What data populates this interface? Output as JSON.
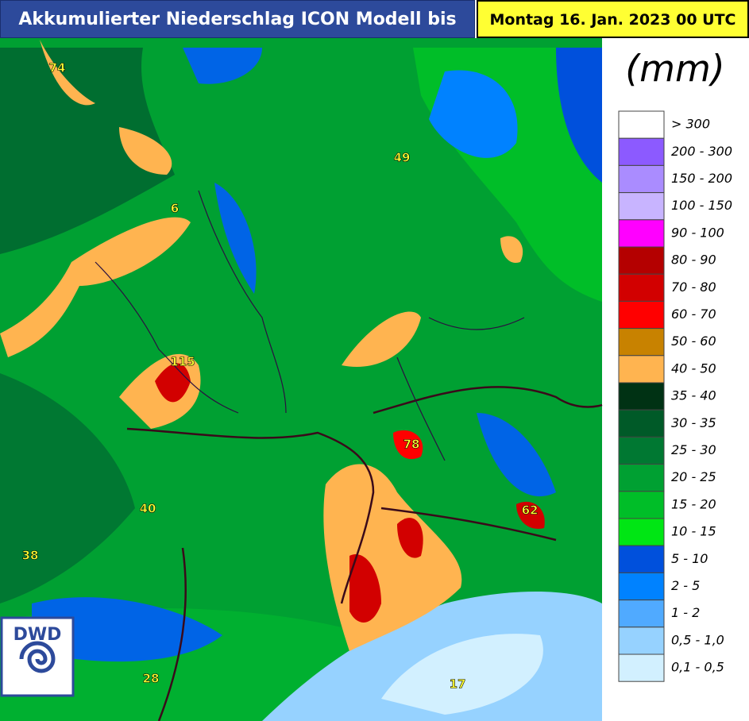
{
  "header": {
    "title": "Akkumulierter Niederschlag ICON Modell bis",
    "date": "Montag 16. Jan. 2023 00 UTC"
  },
  "legend": {
    "unit": "(mm)",
    "items": [
      {
        "label": "> 300",
        "color": "#ffffff"
      },
      {
        "label": "200 - 300",
        "color": "#8c5aff"
      },
      {
        "label": "150 - 200",
        "color": "#aa8cff"
      },
      {
        "label": "100 - 150",
        "color": "#c8b4ff"
      },
      {
        "label": "90 - 100",
        "color": "#ff00ff"
      },
      {
        "label": "80 - 90",
        "color": "#b40000"
      },
      {
        "label": "70 - 80",
        "color": "#d20000"
      },
      {
        "label": "60 - 70",
        "color": "#ff0000"
      },
      {
        "label": "50 - 60",
        "color": "#c88200"
      },
      {
        "label": "40 - 50",
        "color": "#ffb450"
      },
      {
        "label": "35 - 40",
        "color": "#003214"
      },
      {
        "label": "30 - 35",
        "color": "#005a28"
      },
      {
        "label": "25 - 30",
        "color": "#007832"
      },
      {
        "label": "20 - 25",
        "color": "#00a032"
      },
      {
        "label": "15 - 20",
        "color": "#00be28"
      },
      {
        "label": "10 - 15",
        "color": "#00e614"
      },
      {
        "label": "5 - 10",
        "color": "#0050dc"
      },
      {
        "label": "2 - 5",
        "color": "#0082ff"
      },
      {
        "label": "1 - 2",
        "color": "#50aaff"
      },
      {
        "label": "0,5 - 1,0",
        "color": "#96d2ff"
      },
      {
        "label": "0,1 - 0,5",
        "color": "#d2f0ff"
      }
    ]
  },
  "map": {
    "logo": "DWD",
    "labels": [
      "74",
      "6",
      "49",
      "115",
      "78",
      "40",
      "38",
      "62",
      "28",
      "17"
    ]
  }
}
